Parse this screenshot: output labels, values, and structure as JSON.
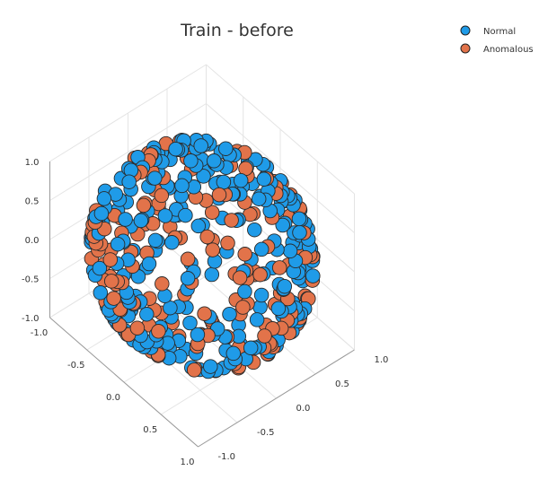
{
  "chart_data": {
    "type": "scatter",
    "subtype": "3d-scatter",
    "title": "Train - before",
    "axes": {
      "x": {
        "range": [
          -1,
          1
        ],
        "ticks": [
          "-1.0",
          "-0.5",
          "0.0",
          "0.5",
          "1.0"
        ]
      },
      "y": {
        "range": [
          -1,
          1
        ],
        "ticks": [
          "-1.0",
          "-0.5",
          "0.0",
          "0.5",
          "1.0"
        ]
      },
      "z": {
        "range": [
          -1,
          1
        ],
        "ticks": [
          "-1.0",
          "-0.5",
          "0.0",
          "0.5",
          "1.0"
        ]
      }
    },
    "grid": true,
    "legend_position": "top-right",
    "series": [
      {
        "name": "Normal",
        "color": "#1f9be8",
        "approx_count": 280,
        "distribution": "points on surface of unit sphere"
      },
      {
        "name": "Anomalous",
        "color": "#e2734a",
        "approx_count": 170,
        "distribution": "points on surface of unit sphere"
      }
    ]
  }
}
